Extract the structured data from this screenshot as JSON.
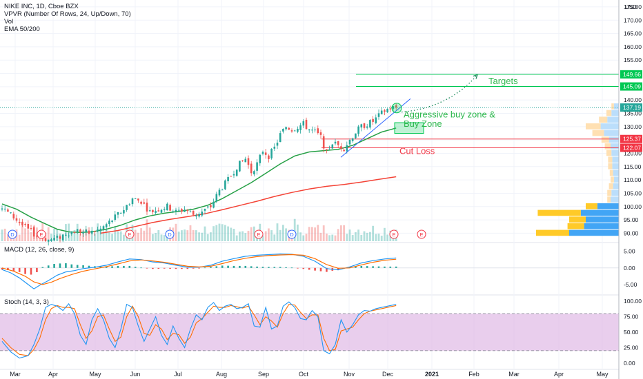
{
  "legend": {
    "title": "NIKE INC, 1D, Cboe BZX",
    "vpvr": "VPVR (Number Of Rows, 24, Up/Down, 70)",
    "vol": "Vol",
    "ema": "EMA 50/200"
  },
  "macd_label": "MACD (12, 26, close, 9)",
  "stoch_label": "Stoch (14, 3, 3)",
  "currency": "USD",
  "annotations": {
    "targets": "Targets",
    "aggressive": "Aggressive buy zone &",
    "buy_zone": "Buy Zone",
    "cut_loss": "Cut Loss"
  },
  "price_badges": {
    "t1": "149.66",
    "t2": "145.09",
    "last": "137.19",
    "s1": "125.37",
    "s2": "122.07"
  },
  "event_markers": [
    "D",
    "E",
    "E",
    "D",
    "E",
    "D",
    "E"
  ],
  "colors": {
    "target_line": "#00c853",
    "cut_line": "#f23645",
    "ema50": "#26a046",
    "ema200": "#f44336",
    "up": "#26a69a",
    "down": "#ef5350",
    "macd": "#2196f3",
    "signal": "#ff6d00",
    "stoch_k": "#2196f3",
    "stoch_d": "#ff6d00",
    "stoch_band": "#e1bee7"
  },
  "chart_data": {
    "type": "candlestick",
    "price_axis": {
      "ticks": [
        "175.00",
        "170.00",
        "165.00",
        "160.00",
        "155.00",
        "150.00",
        "145.00",
        "140.00",
        "135.00",
        "130.00",
        "125.00",
        "120.00",
        "115.00",
        "110.00",
        "105.00",
        "100.00",
        "95.00",
        "90.00"
      ],
      "range": [
        87,
        175.5
      ]
    },
    "macd_axis": {
      "ticks": [
        "5.00",
        "0.00",
        "-5.00"
      ],
      "range": [
        -7.5,
        7
      ]
    },
    "stoch_axis": {
      "ticks": [
        "100.00",
        "75.00",
        "50.00",
        "25.00",
        "0.00"
      ],
      "range": [
        -8,
        108
      ],
      "band": [
        20,
        80
      ]
    },
    "x_labels": [
      "Mar",
      "Apr",
      "May",
      "Jun",
      "Jul",
      "Aug",
      "Sep",
      "Oct",
      "Nov",
      "Dec",
      "2021",
      "Feb",
      "Mar",
      "Apr",
      "May"
    ],
    "price_path": [
      [
        0,
        99.5
      ],
      [
        4,
        96
      ],
      [
        8,
        92
      ],
      [
        12,
        89
      ],
      [
        16,
        87.5
      ],
      [
        19,
        88
      ],
      [
        22,
        90
      ],
      [
        26,
        91
      ],
      [
        30,
        90
      ],
      [
        34,
        91.5
      ],
      [
        38,
        95
      ],
      [
        42,
        99
      ],
      [
        45,
        103
      ],
      [
        48,
        102
      ],
      [
        51,
        98
      ],
      [
        54,
        99
      ],
      [
        57,
        100
      ],
      [
        60,
        98
      ],
      [
        63,
        99
      ],
      [
        66,
        97
      ],
      [
        69,
        98
      ],
      [
        72,
        100
      ],
      [
        75,
        106
      ],
      [
        78,
        110
      ],
      [
        81,
        115
      ],
      [
        84,
        118
      ],
      [
        86,
        113
      ],
      [
        88,
        116
      ],
      [
        90,
        121
      ],
      [
        92,
        119
      ],
      [
        94,
        122
      ],
      [
        96,
        127
      ],
      [
        98,
        130
      ],
      [
        100,
        129
      ],
      [
        102,
        130
      ],
      [
        104,
        131
      ],
      [
        106,
        129
      ],
      [
        108,
        128
      ],
      [
        110,
        126
      ],
      [
        112,
        120
      ],
      [
        114,
        124
      ],
      [
        116,
        123
      ],
      [
        118,
        122
      ],
      [
        120,
        125
      ],
      [
        122,
        128
      ],
      [
        124,
        130
      ],
      [
        126,
        131
      ],
      [
        128,
        132
      ],
      [
        130,
        134
      ],
      [
        132,
        136
      ],
      [
        134,
        137
      ],
      [
        136,
        137.19
      ]
    ],
    "ema50": [
      [
        0,
        101
      ],
      [
        5,
        99
      ],
      [
        10,
        96
      ],
      [
        15,
        93.5
      ],
      [
        19,
        91.5
      ],
      [
        23,
        90.5
      ],
      [
        27,
        90.3
      ],
      [
        31,
        90.5
      ],
      [
        36,
        91.5
      ],
      [
        41,
        93
      ],
      [
        46,
        95
      ],
      [
        51,
        96.5
      ],
      [
        56,
        97.5
      ],
      [
        61,
        98.2
      ],
      [
        66,
        99
      ],
      [
        71,
        100.5
      ],
      [
        76,
        103
      ],
      [
        81,
        106
      ],
      [
        86,
        109
      ],
      [
        91,
        112.5
      ],
      [
        96,
        116
      ],
      [
        101,
        119
      ],
      [
        106,
        120.5
      ],
      [
        111,
        121
      ],
      [
        116,
        121.5
      ],
      [
        121,
        123
      ],
      [
        126,
        125.5
      ],
      [
        131,
        128
      ],
      [
        136,
        129.5
      ]
    ],
    "ema200": [
      [
        34,
        90
      ],
      [
        40,
        91
      ],
      [
        46,
        92.5
      ],
      [
        52,
        94
      ],
      [
        58,
        95.2
      ],
      [
        64,
        96.2
      ],
      [
        70,
        97.3
      ],
      [
        76,
        98.8
      ],
      [
        82,
        100.4
      ],
      [
        88,
        102
      ],
      [
        94,
        103.8
      ],
      [
        100,
        105.3
      ],
      [
        106,
        106.6
      ],
      [
        112,
        107.6
      ],
      [
        118,
        108.3
      ],
      [
        124,
        109.2
      ],
      [
        130,
        110.2
      ],
      [
        136,
        111.2
      ]
    ],
    "levels": {
      "targets": [
        149.66,
        145.09
      ],
      "last": 137.19,
      "cut_loss": [
        125.37,
        122.07
      ]
    },
    "macd": [
      [
        0,
        -0.5
      ],
      [
        3,
        -1.5
      ],
      [
        6,
        -3
      ],
      [
        9,
        -5
      ],
      [
        11,
        -6.3
      ],
      [
        13,
        -5.2
      ],
      [
        16,
        -3.8
      ],
      [
        19,
        -2.2
      ],
      [
        22,
        -1.2
      ],
      [
        25,
        -0.8
      ],
      [
        28,
        -0.2
      ],
      [
        32,
        0.2
      ],
      [
        36,
        0.8
      ],
      [
        40,
        1.8
      ],
      [
        44,
        2.7
      ],
      [
        48,
        2.5
      ],
      [
        52,
        1.8
      ],
      [
        56,
        1.5
      ],
      [
        60,
        0.8
      ],
      [
        64,
        0.2
      ],
      [
        68,
        0.2
      ],
      [
        72,
        0.8
      ],
      [
        76,
        2
      ],
      [
        80,
        2.8
      ],
      [
        84,
        3.5
      ],
      [
        88,
        3.8
      ],
      [
        92,
        4
      ],
      [
        96,
        4.2
      ],
      [
        100,
        4.1
      ],
      [
        104,
        3.5
      ],
      [
        108,
        2
      ],
      [
        112,
        -0.2
      ],
      [
        116,
        -0.6
      ],
      [
        120,
        0.3
      ],
      [
        124,
        1.5
      ],
      [
        128,
        2.2
      ],
      [
        132,
        2.7
      ],
      [
        136,
        3
      ]
    ],
    "macd_signal": [
      [
        0,
        0
      ],
      [
        4,
        -1
      ],
      [
        8,
        -2.5
      ],
      [
        11,
        -4.2
      ],
      [
        14,
        -5
      ],
      [
        17,
        -4.3
      ],
      [
        20,
        -3.2
      ],
      [
        24,
        -2
      ],
      [
        28,
        -1
      ],
      [
        32,
        -0.3
      ],
      [
        36,
        0.4
      ],
      [
        40,
        1.2
      ],
      [
        44,
        2.1
      ],
      [
        48,
        2.4
      ],
      [
        52,
        2.1
      ],
      [
        56,
        1.7
      ],
      [
        60,
        1.1
      ],
      [
        64,
        0.5
      ],
      [
        68,
        0.3
      ],
      [
        72,
        0.5
      ],
      [
        76,
        1.3
      ],
      [
        80,
        2.2
      ],
      [
        84,
        2.9
      ],
      [
        88,
        3.4
      ],
      [
        92,
        3.7
      ],
      [
        96,
        3.9
      ],
      [
        100,
        4
      ],
      [
        104,
        3.8
      ],
      [
        108,
        2.8
      ],
      [
        112,
        1
      ],
      [
        116,
        -0.1
      ],
      [
        120,
        0
      ],
      [
        124,
        0.9
      ],
      [
        128,
        1.7
      ],
      [
        132,
        2.3
      ],
      [
        136,
        2.6
      ]
    ],
    "stoch_k": [
      [
        0,
        35
      ],
      [
        3,
        18
      ],
      [
        6,
        8
      ],
      [
        9,
        12
      ],
      [
        11,
        30
      ],
      [
        13,
        55
      ],
      [
        15,
        90
      ],
      [
        17,
        95
      ],
      [
        19,
        92
      ],
      [
        21,
        85
      ],
      [
        23,
        96
      ],
      [
        25,
        80
      ],
      [
        27,
        45
      ],
      [
        29,
        30
      ],
      [
        31,
        70
      ],
      [
        33,
        88
      ],
      [
        35,
        70
      ],
      [
        37,
        40
      ],
      [
        39,
        25
      ],
      [
        41,
        55
      ],
      [
        43,
        95
      ],
      [
        45,
        90
      ],
      [
        47,
        60
      ],
      [
        49,
        35
      ],
      [
        51,
        55
      ],
      [
        53,
        75
      ],
      [
        55,
        45
      ],
      [
        57,
        30
      ],
      [
        59,
        60
      ],
      [
        61,
        40
      ],
      [
        63,
        25
      ],
      [
        65,
        55
      ],
      [
        67,
        78
      ],
      [
        69,
        70
      ],
      [
        71,
        90
      ],
      [
        73,
        98
      ],
      [
        75,
        85
      ],
      [
        77,
        92
      ],
      [
        79,
        95
      ],
      [
        81,
        88
      ],
      [
        83,
        90
      ],
      [
        85,
        96
      ],
      [
        87,
        60
      ],
      [
        89,
        58
      ],
      [
        91,
        90
      ],
      [
        93,
        55
      ],
      [
        95,
        60
      ],
      [
        97,
        92
      ],
      [
        99,
        99
      ],
      [
        101,
        90
      ],
      [
        103,
        72
      ],
      [
        105,
        70
      ],
      [
        107,
        85
      ],
      [
        109,
        75
      ],
      [
        111,
        20
      ],
      [
        113,
        15
      ],
      [
        115,
        30
      ],
      [
        117,
        70
      ],
      [
        119,
        50
      ],
      [
        121,
        62
      ],
      [
        123,
        78
      ],
      [
        125,
        85
      ],
      [
        127,
        84
      ],
      [
        129,
        88
      ],
      [
        131,
        90
      ],
      [
        133,
        92
      ],
      [
        135,
        94
      ],
      [
        136,
        95
      ]
    ],
    "stoch_d": [
      [
        0,
        40
      ],
      [
        3,
        25
      ],
      [
        6,
        14
      ],
      [
        9,
        12
      ],
      [
        11,
        22
      ],
      [
        13,
        40
      ],
      [
        15,
        70
      ],
      [
        17,
        88
      ],
      [
        19,
        93
      ],
      [
        21,
        90
      ],
      [
        23,
        90
      ],
      [
        25,
        88
      ],
      [
        27,
        62
      ],
      [
        29,
        40
      ],
      [
        31,
        52
      ],
      [
        33,
        75
      ],
      [
        35,
        78
      ],
      [
        37,
        55
      ],
      [
        39,
        35
      ],
      [
        41,
        42
      ],
      [
        43,
        75
      ],
      [
        45,
        92
      ],
      [
        47,
        75
      ],
      [
        49,
        48
      ],
      [
        51,
        45
      ],
      [
        53,
        62
      ],
      [
        55,
        55
      ],
      [
        57,
        38
      ],
      [
        59,
        48
      ],
      [
        61,
        46
      ],
      [
        63,
        32
      ],
      [
        65,
        42
      ],
      [
        67,
        65
      ],
      [
        69,
        72
      ],
      [
        71,
        82
      ],
      [
        73,
        92
      ],
      [
        75,
        90
      ],
      [
        77,
        90
      ],
      [
        79,
        93
      ],
      [
        81,
        91
      ],
      [
        83,
        89
      ],
      [
        85,
        92
      ],
      [
        87,
        78
      ],
      [
        89,
        62
      ],
      [
        91,
        75
      ],
      [
        93,
        68
      ],
      [
        95,
        58
      ],
      [
        97,
        80
      ],
      [
        99,
        95
      ],
      [
        101,
        94
      ],
      [
        103,
        82
      ],
      [
        105,
        72
      ],
      [
        107,
        78
      ],
      [
        109,
        78
      ],
      [
        111,
        40
      ],
      [
        113,
        20
      ],
      [
        115,
        22
      ],
      [
        117,
        52
      ],
      [
        119,
        55
      ],
      [
        121,
        58
      ],
      [
        123,
        70
      ],
      [
        125,
        80
      ],
      [
        127,
        84
      ],
      [
        129,
        86
      ],
      [
        131,
        88
      ],
      [
        133,
        90
      ],
      [
        135,
        92
      ],
      [
        136,
        93
      ]
    ],
    "volume_profile": [
      {
        "price": 137.5,
        "up": 3,
        "down": 6
      },
      {
        "price": 135,
        "up": 6,
        "down": 9
      },
      {
        "price": 132.5,
        "up": 10,
        "down": 14
      },
      {
        "price": 130,
        "up": 18,
        "down": 22
      },
      {
        "price": 127.5,
        "up": 14,
        "down": 18
      },
      {
        "price": 125,
        "up": 9,
        "down": 12
      },
      {
        "price": 122.5,
        "up": 7,
        "down": 10
      },
      {
        "price": 120,
        "up": 6,
        "down": 9
      },
      {
        "price": 117.5,
        "up": 5,
        "down": 8
      },
      {
        "price": 115,
        "up": 5,
        "down": 8
      },
      {
        "price": 112.5,
        "up": 4,
        "down": 7
      },
      {
        "price": 110,
        "up": 4,
        "down": 6
      },
      {
        "price": 107.5,
        "up": 5,
        "down": 7
      },
      {
        "price": 105,
        "up": 5,
        "down": 9
      },
      {
        "price": 102.5,
        "up": 4,
        "down": 10
      },
      {
        "price": 100,
        "up": 14,
        "down": 26
      },
      {
        "price": 97.5,
        "up": 52,
        "down": 46
      },
      {
        "price": 95,
        "up": 20,
        "down": 40
      },
      {
        "price": 92.5,
        "up": 20,
        "down": 42
      },
      {
        "price": 90,
        "up": 40,
        "down": 60
      }
    ]
  }
}
